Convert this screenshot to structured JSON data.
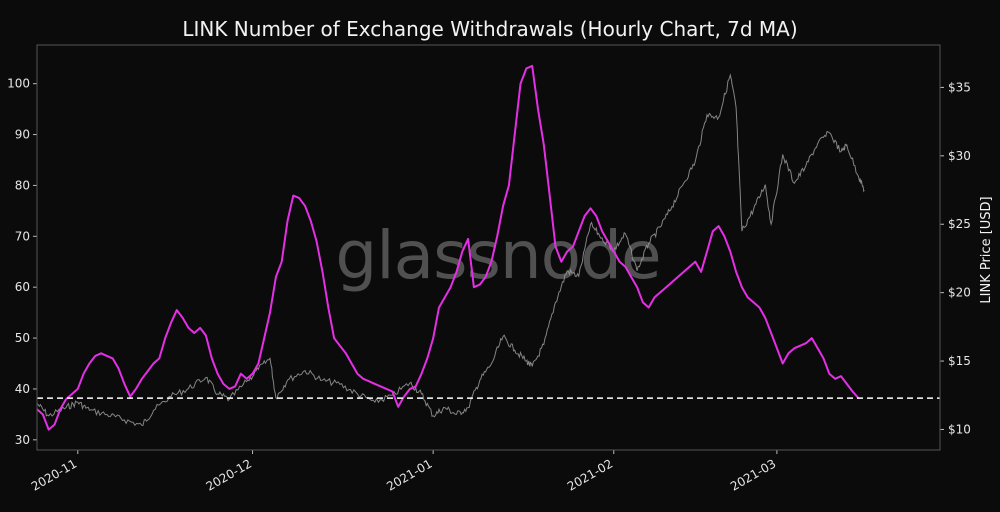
{
  "chart_data": {
    "type": "line",
    "title": "LINK Number of Exchange Withdrawals (Hourly Chart, 7d MA)",
    "watermark": "glassnode",
    "xlabel": "",
    "ylabel_left": "",
    "ylabel_right": "LINK Price [USD]",
    "x_tick_labels": [
      "2020-11",
      "2020-12",
      "2021-01",
      "2021-02",
      "2021-03"
    ],
    "x_ticks": [
      "2020-11-01",
      "2020-12-01",
      "2021-01-01",
      "2021-02-01",
      "2021-03-01"
    ],
    "xlim": [
      "2020-10-25",
      "2021-03-29"
    ],
    "y_left_ticks": [
      30,
      40,
      50,
      60,
      70,
      80,
      90,
      100
    ],
    "y_left_lim": [
      28,
      107.6
    ],
    "y_right_ticks": [
      10,
      15,
      20,
      25,
      30,
      35
    ],
    "y_right_tick_labels": [
      "$10",
      "$15",
      "$20",
      "$25",
      "$30",
      "$35"
    ],
    "y_right_lim": [
      8.5,
      38.1
    ],
    "reference_line": {
      "value": 38.2,
      "style": "dashed",
      "color": "#ffffff"
    },
    "grid": false,
    "colors": {
      "background": "#0b0b0b",
      "withdrawals": "#e52fe5",
      "price": "#9a9a9a",
      "text": "#e6e6e6",
      "spine": "#555555"
    },
    "series": [
      {
        "role": "withdrawals",
        "axis": "left",
        "points": [
          [
            "2020-10-25",
            36
          ],
          [
            "2020-10-26",
            35
          ],
          [
            "2020-10-27",
            32
          ],
          [
            "2020-10-28",
            33
          ],
          [
            "2020-10-29",
            36
          ],
          [
            "2020-10-30",
            38
          ],
          [
            "2020-10-31",
            39
          ],
          [
            "2020-11-01",
            40
          ],
          [
            "2020-11-02",
            43
          ],
          [
            "2020-11-03",
            45
          ],
          [
            "2020-11-04",
            46.5
          ],
          [
            "2020-11-05",
            47
          ],
          [
            "2020-11-06",
            46.5
          ],
          [
            "2020-11-07",
            46
          ],
          [
            "2020-11-08",
            44
          ],
          [
            "2020-11-09",
            41
          ],
          [
            "2020-11-10",
            38.5
          ],
          [
            "2020-11-11",
            40
          ],
          [
            "2020-11-12",
            42
          ],
          [
            "2020-11-13",
            43.5
          ],
          [
            "2020-11-14",
            45
          ],
          [
            "2020-11-15",
            46
          ],
          [
            "2020-11-16",
            50
          ],
          [
            "2020-11-17",
            53
          ],
          [
            "2020-11-18",
            55.5
          ],
          [
            "2020-11-19",
            54
          ],
          [
            "2020-11-20",
            52
          ],
          [
            "2020-11-21",
            51
          ],
          [
            "2020-11-22",
            52
          ],
          [
            "2020-11-23",
            50.5
          ],
          [
            "2020-11-24",
            46
          ],
          [
            "2020-11-25",
            43
          ],
          [
            "2020-11-26",
            41
          ],
          [
            "2020-11-27",
            40
          ],
          [
            "2020-11-28",
            40.5
          ],
          [
            "2020-11-29",
            43
          ],
          [
            "2020-11-30",
            42
          ],
          [
            "2020-12-01",
            43
          ],
          [
            "2020-12-02",
            45
          ],
          [
            "2020-12-03",
            50
          ],
          [
            "2020-12-04",
            55
          ],
          [
            "2020-12-05",
            62
          ],
          [
            "2020-12-06",
            65
          ],
          [
            "2020-12-07",
            73
          ],
          [
            "2020-12-08",
            78
          ],
          [
            "2020-12-09",
            77.5
          ],
          [
            "2020-12-10",
            76
          ],
          [
            "2020-12-11",
            73
          ],
          [
            "2020-12-12",
            69
          ],
          [
            "2020-12-13",
            63
          ],
          [
            "2020-12-14",
            56
          ],
          [
            "2020-12-15",
            50
          ],
          [
            "2020-12-16",
            48.5
          ],
          [
            "2020-12-17",
            47
          ],
          [
            "2020-12-18",
            45
          ],
          [
            "2020-12-19",
            43
          ],
          [
            "2020-12-20",
            42
          ],
          [
            "2020-12-21",
            41.5
          ],
          [
            "2020-12-22",
            41
          ],
          [
            "2020-12-23",
            40.5
          ],
          [
            "2020-12-24",
            40
          ],
          [
            "2020-12-25",
            39.5
          ],
          [
            "2020-12-26",
            36.5
          ],
          [
            "2020-12-27",
            38.5
          ],
          [
            "2020-12-28",
            40
          ],
          [
            "2020-12-29",
            40.5
          ],
          [
            "2020-12-30",
            43
          ],
          [
            "2020-12-31",
            46
          ],
          [
            "2021-01-01",
            50
          ],
          [
            "2021-01-02",
            56
          ],
          [
            "2021-01-03",
            58
          ],
          [
            "2021-01-04",
            60
          ],
          [
            "2021-01-05",
            63
          ],
          [
            "2021-01-06",
            67
          ],
          [
            "2021-01-07",
            69.5
          ],
          [
            "2021-01-08",
            60
          ],
          [
            "2021-01-09",
            60.5
          ],
          [
            "2021-01-10",
            62
          ],
          [
            "2021-01-11",
            65
          ],
          [
            "2021-01-12",
            70
          ],
          [
            "2021-01-13",
            76
          ],
          [
            "2021-01-14",
            80
          ],
          [
            "2021-01-15",
            90
          ],
          [
            "2021-01-16",
            100
          ],
          [
            "2021-01-17",
            103
          ],
          [
            "2021-01-18",
            103.5
          ],
          [
            "2021-01-19",
            95
          ],
          [
            "2021-01-20",
            88
          ],
          [
            "2021-01-21",
            78
          ],
          [
            "2021-01-22",
            68
          ],
          [
            "2021-01-23",
            65
          ],
          [
            "2021-01-24",
            67
          ],
          [
            "2021-01-25",
            68
          ],
          [
            "2021-01-26",
            71
          ],
          [
            "2021-01-27",
            74
          ],
          [
            "2021-01-28",
            75.5
          ],
          [
            "2021-01-29",
            74
          ],
          [
            "2021-01-30",
            71
          ],
          [
            "2021-01-31",
            69
          ],
          [
            "2021-02-01",
            67
          ],
          [
            "2021-02-02",
            65
          ],
          [
            "2021-02-03",
            64
          ],
          [
            "2021-02-04",
            62
          ],
          [
            "2021-02-05",
            60
          ],
          [
            "2021-02-06",
            57
          ],
          [
            "2021-02-07",
            56
          ],
          [
            "2021-02-08",
            58
          ],
          [
            "2021-02-09",
            59
          ],
          [
            "2021-02-10",
            60
          ],
          [
            "2021-02-11",
            61
          ],
          [
            "2021-02-12",
            62
          ],
          [
            "2021-02-13",
            63
          ],
          [
            "2021-02-14",
            64
          ],
          [
            "2021-02-15",
            65
          ],
          [
            "2021-02-16",
            63
          ],
          [
            "2021-02-17",
            67
          ],
          [
            "2021-02-18",
            71
          ],
          [
            "2021-02-19",
            72
          ],
          [
            "2021-02-20",
            70
          ],
          [
            "2021-02-21",
            67
          ],
          [
            "2021-02-22",
            63
          ],
          [
            "2021-02-23",
            60
          ],
          [
            "2021-02-24",
            58
          ],
          [
            "2021-02-25",
            57
          ],
          [
            "2021-02-26",
            56
          ],
          [
            "2021-02-27",
            54
          ],
          [
            "2021-02-28",
            51
          ],
          [
            "2021-03-01",
            48
          ],
          [
            "2021-03-02",
            45
          ],
          [
            "2021-03-03",
            47
          ],
          [
            "2021-03-04",
            48
          ],
          [
            "2021-03-05",
            48.5
          ],
          [
            "2021-03-06",
            49
          ],
          [
            "2021-03-07",
            50
          ],
          [
            "2021-03-08",
            48
          ],
          [
            "2021-03-09",
            46
          ],
          [
            "2021-03-10",
            43
          ],
          [
            "2021-03-11",
            42
          ],
          [
            "2021-03-12",
            42.5
          ],
          [
            "2021-03-13",
            41
          ],
          [
            "2021-03-14",
            39.5
          ],
          [
            "2021-03-15",
            38.2
          ]
        ]
      },
      {
        "role": "price",
        "axis": "right",
        "points": [
          [
            "2020-10-25",
            11.9
          ],
          [
            "2020-10-27",
            11.0
          ],
          [
            "2020-10-30",
            11.6
          ],
          [
            "2020-11-01",
            12.0
          ],
          [
            "2020-11-03",
            11.4
          ],
          [
            "2020-11-06",
            11.1
          ],
          [
            "2020-11-09",
            10.7
          ],
          [
            "2020-11-12",
            10.3
          ],
          [
            "2020-11-14",
            11.4
          ],
          [
            "2020-11-17",
            12.4
          ],
          [
            "2020-11-20",
            13.0
          ],
          [
            "2020-11-23",
            13.8
          ],
          [
            "2020-11-25",
            12.6
          ],
          [
            "2020-11-27",
            12.2
          ],
          [
            "2020-11-30",
            13.5
          ],
          [
            "2020-12-02",
            14.4
          ],
          [
            "2020-12-04",
            15.2
          ],
          [
            "2020-12-05",
            12.3
          ],
          [
            "2020-12-07",
            13.6
          ],
          [
            "2020-12-10",
            14.3
          ],
          [
            "2020-12-13",
            13.6
          ],
          [
            "2020-12-16",
            13.3
          ],
          [
            "2020-12-19",
            12.6
          ],
          [
            "2020-12-22",
            12.0
          ],
          [
            "2020-12-25",
            12.5
          ],
          [
            "2020-12-28",
            13.4
          ],
          [
            "2020-12-30",
            12.6
          ],
          [
            "2021-01-01",
            11.0
          ],
          [
            "2021-01-03",
            11.6
          ],
          [
            "2021-01-05",
            11.1
          ],
          [
            "2021-01-07",
            11.6
          ],
          [
            "2021-01-09",
            13.6
          ],
          [
            "2021-01-11",
            14.8
          ],
          [
            "2021-01-13",
            16.8
          ],
          [
            "2021-01-15",
            15.8
          ],
          [
            "2021-01-17",
            15.0
          ],
          [
            "2021-01-18",
            14.6
          ],
          [
            "2021-01-20",
            16.2
          ],
          [
            "2021-01-22",
            19.3
          ],
          [
            "2021-01-24",
            21.6
          ],
          [
            "2021-01-26",
            21.2
          ],
          [
            "2021-01-28",
            25.0
          ],
          [
            "2021-01-30",
            24.0
          ],
          [
            "2021-02-01",
            23.1
          ],
          [
            "2021-02-03",
            24.3
          ],
          [
            "2021-02-05",
            21.6
          ],
          [
            "2021-02-07",
            23.6
          ],
          [
            "2021-02-09",
            24.8
          ],
          [
            "2021-02-11",
            26.3
          ],
          [
            "2021-02-13",
            28.0
          ],
          [
            "2021-02-15",
            29.6
          ],
          [
            "2021-02-17",
            33.0
          ],
          [
            "2021-02-19",
            32.8
          ],
          [
            "2021-02-21",
            35.9
          ],
          [
            "2021-02-22",
            33.5
          ],
          [
            "2021-02-23",
            24.5
          ],
          [
            "2021-02-25",
            26.1
          ],
          [
            "2021-02-27",
            27.9
          ],
          [
            "2021-02-28",
            25.0
          ],
          [
            "2021-03-02",
            30.1
          ],
          [
            "2021-03-04",
            28.0
          ],
          [
            "2021-03-06",
            29.3
          ],
          [
            "2021-03-08",
            30.9
          ],
          [
            "2021-03-10",
            31.7
          ],
          [
            "2021-03-12",
            30.3
          ],
          [
            "2021-03-13",
            30.8
          ],
          [
            "2021-03-15",
            28.5
          ],
          [
            "2021-03-16",
            27.5
          ]
        ]
      }
    ]
  }
}
